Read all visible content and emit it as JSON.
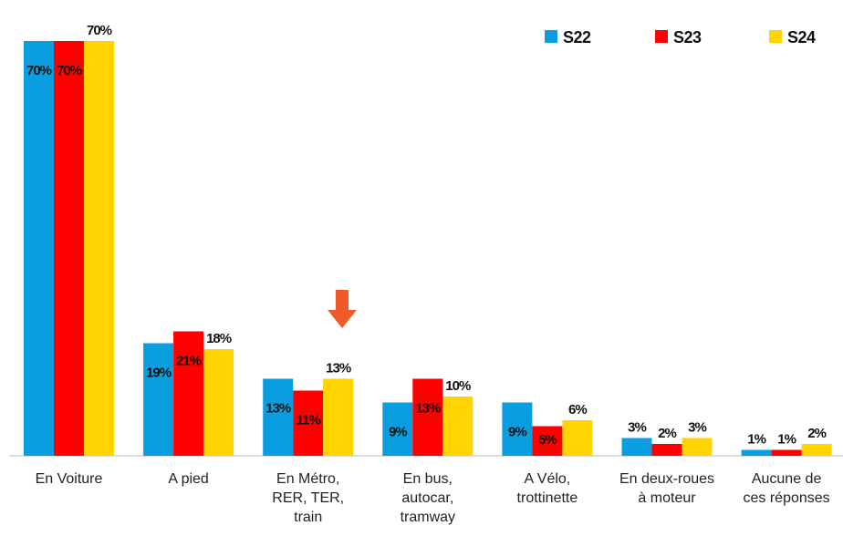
{
  "chart_data": {
    "type": "bar",
    "categories": [
      [
        "En Voiture"
      ],
      [
        "A pied"
      ],
      [
        "En Métro,",
        "RER, TER,",
        "train"
      ],
      [
        "En bus,",
        "autocar,",
        "tramway"
      ],
      [
        "A Vélo,",
        "trottinette"
      ],
      [
        "En deux-roues",
        "à moteur"
      ],
      [
        "Aucune de",
        "ces réponses"
      ]
    ],
    "series": [
      {
        "name": "S22",
        "color": "#0a9ee0",
        "values": [
          70,
          19,
          13,
          9,
          9,
          3,
          1
        ],
        "value_labels": [
          "70%",
          "19%",
          "13%",
          "9%",
          "9%",
          "3%",
          "1%"
        ]
      },
      {
        "name": "S23",
        "color": "#ff0000",
        "values": [
          70,
          21,
          11,
          13,
          5,
          2,
          1
        ],
        "value_labels": [
          "70%",
          "21%",
          "11%",
          "13%",
          "5%",
          "2%",
          "1%"
        ]
      },
      {
        "name": "S24",
        "color": "#ffd400",
        "values": [
          70,
          18,
          13,
          10,
          6,
          3,
          2
        ],
        "value_labels": [
          "70%",
          "18%",
          "13%",
          "10%",
          "6%",
          "3%",
          "2%"
        ]
      }
    ],
    "legend": "top-right"
  }
}
